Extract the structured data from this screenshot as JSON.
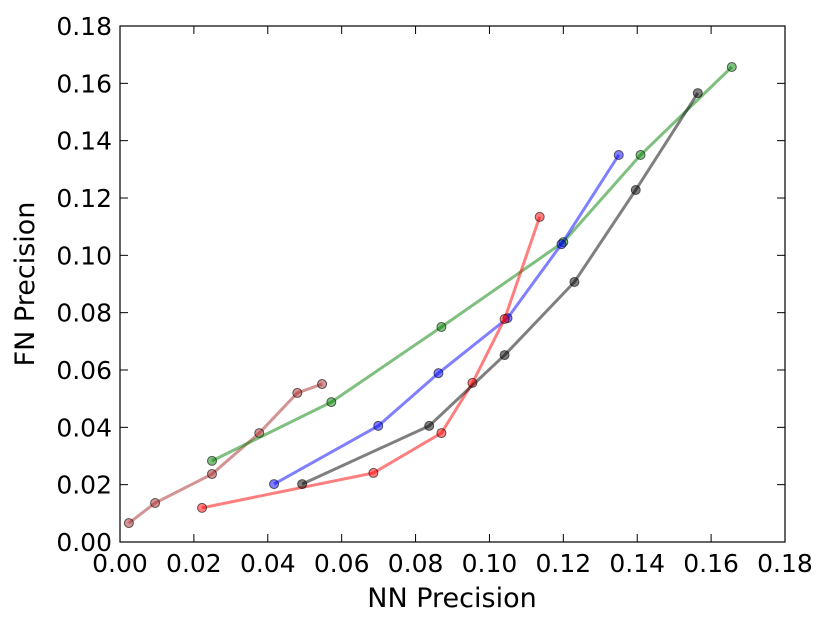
{
  "chart_data": {
    "type": "line",
    "x_label": "NN Precision",
    "y_label": "FN Precision",
    "xlim": [
      0,
      0.18
    ],
    "ylim": [
      0,
      0.18
    ],
    "xticks": [
      {
        "value": 0,
        "label": "0.00"
      },
      {
        "value": 0.02,
        "label": "0.02"
      },
      {
        "value": 0.04,
        "label": "0.04"
      },
      {
        "value": 0.06,
        "label": "0.06"
      },
      {
        "value": 0.08,
        "label": "0.08"
      },
      {
        "value": 0.1,
        "label": "0.10"
      },
      {
        "value": 0.12,
        "label": "0.12"
      },
      {
        "value": 0.14,
        "label": "0.14"
      },
      {
        "value": 0.16,
        "label": "0.16"
      },
      {
        "value": 0.18,
        "label": "0.18"
      }
    ],
    "yticks": [
      {
        "value": 0,
        "label": "0.00"
      },
      {
        "value": 0.02,
        "label": "0.02"
      },
      {
        "value": 0.04,
        "label": "0.04"
      },
      {
        "value": 0.06,
        "label": "0.06"
      },
      {
        "value": 0.08,
        "label": "0.08"
      },
      {
        "value": 0.1,
        "label": "0.10"
      },
      {
        "value": 0.12,
        "label": "0.12"
      },
      {
        "value": 0.14,
        "label": "0.14"
      },
      {
        "value": 0.16,
        "label": "0.16"
      },
      {
        "value": 0.18,
        "label": "0.18"
      }
    ],
    "series": [
      {
        "color": "#a52a2a",
        "x": [
          0.0024,
          0.0095,
          0.0249,
          0.0377,
          0.048,
          0.0547
        ],
        "values": [
          0.0066,
          0.0136,
          0.0237,
          0.038,
          0.052,
          0.0551
        ]
      },
      {
        "color": "#008000",
        "x": [
          0.0249,
          0.0572,
          0.087,
          0.12,
          0.1409,
          0.1656
        ],
        "values": [
          0.0283,
          0.0488,
          0.075,
          0.1046,
          0.135,
          0.1657
        ]
      },
      {
        "color": "#0000ff",
        "x": [
          0.0417,
          0.0699,
          0.0862,
          0.1049,
          0.1195,
          0.135
        ],
        "values": [
          0.0202,
          0.0405,
          0.0589,
          0.0781,
          0.1039,
          0.135
        ]
      },
      {
        "color": "#ff0000",
        "x": [
          0.0222,
          0.0686,
          0.087,
          0.0954,
          0.1041,
          0.1136
        ],
        "values": [
          0.0119,
          0.0241,
          0.038,
          0.0555,
          0.0778,
          0.1134
        ]
      },
      {
        "color": "#000000",
        "x": [
          0.0493,
          0.0837,
          0.1041,
          0.123,
          0.1396,
          0.1564
        ],
        "values": [
          0.0202,
          0.0405,
          0.0652,
          0.0907,
          0.1228,
          0.1566
        ]
      }
    ]
  }
}
